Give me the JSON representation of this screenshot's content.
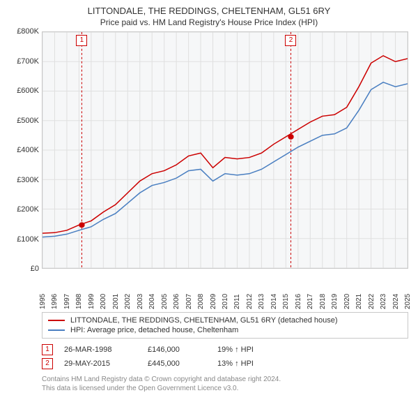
{
  "title": "LITTONDALE, THE REDDINGS, CHELTENHAM, GL51 6RY",
  "subtitle": "Price paid vs. HM Land Registry's House Price Index (HPI)",
  "chart": {
    "type": "line",
    "background_color": "#f6f7f8",
    "grid_color": "#e0e0e0",
    "border_color": "#c8c8c8",
    "ylim": [
      0,
      800
    ],
    "ytick_step": 100,
    "ytick_prefix": "£",
    "ytick_suffix": "K",
    "yticks": [
      "£0",
      "£100K",
      "£200K",
      "£300K",
      "£400K",
      "£500K",
      "£600K",
      "£700K",
      "£800K"
    ],
    "xlim": [
      1995,
      2025
    ],
    "xticks": [
      1995,
      1996,
      1997,
      1998,
      1999,
      2000,
      2001,
      2002,
      2003,
      2004,
      2005,
      2006,
      2007,
      2008,
      2009,
      2010,
      2011,
      2012,
      2013,
      2014,
      2015,
      2016,
      2017,
      2018,
      2019,
      2020,
      2021,
      2022,
      2023,
      2024,
      2025
    ],
    "series_a": {
      "label": "LITTONDALE, THE REDDINGS, CHELTENHAM, GL51 6RY (detached house)",
      "color": "#cc0000",
      "line_width": 1.5,
      "data": [
        [
          1995,
          118
        ],
        [
          1996,
          120
        ],
        [
          1997,
          128
        ],
        [
          1998,
          146
        ],
        [
          1999,
          160
        ],
        [
          2000,
          190
        ],
        [
          2001,
          215
        ],
        [
          2002,
          255
        ],
        [
          2003,
          295
        ],
        [
          2004,
          320
        ],
        [
          2005,
          330
        ],
        [
          2006,
          350
        ],
        [
          2007,
          380
        ],
        [
          2008,
          390
        ],
        [
          2009,
          340
        ],
        [
          2010,
          375
        ],
        [
          2011,
          370
        ],
        [
          2012,
          375
        ],
        [
          2013,
          390
        ],
        [
          2014,
          420
        ],
        [
          2015,
          445
        ],
        [
          2016,
          470
        ],
        [
          2017,
          495
        ],
        [
          2018,
          515
        ],
        [
          2019,
          520
        ],
        [
          2020,
          545
        ],
        [
          2021,
          615
        ],
        [
          2022,
          695
        ],
        [
          2023,
          720
        ],
        [
          2024,
          700
        ],
        [
          2025,
          710
        ]
      ]
    },
    "series_b": {
      "label": "HPI: Average price, detached house, Cheltenham",
      "color": "#4a7fc1",
      "line_width": 1.5,
      "data": [
        [
          1995,
          105
        ],
        [
          1996,
          108
        ],
        [
          1997,
          115
        ],
        [
          1998,
          128
        ],
        [
          1999,
          140
        ],
        [
          2000,
          165
        ],
        [
          2001,
          185
        ],
        [
          2002,
          220
        ],
        [
          2003,
          255
        ],
        [
          2004,
          280
        ],
        [
          2005,
          290
        ],
        [
          2006,
          305
        ],
        [
          2007,
          330
        ],
        [
          2008,
          335
        ],
        [
          2009,
          295
        ],
        [
          2010,
          320
        ],
        [
          2011,
          315
        ],
        [
          2012,
          320
        ],
        [
          2013,
          335
        ],
        [
          2014,
          360
        ],
        [
          2015,
          385
        ],
        [
          2016,
          410
        ],
        [
          2017,
          430
        ],
        [
          2018,
          450
        ],
        [
          2019,
          455
        ],
        [
          2020,
          475
        ],
        [
          2021,
          535
        ],
        [
          2022,
          605
        ],
        [
          2023,
          630
        ],
        [
          2024,
          615
        ],
        [
          2025,
          625
        ]
      ]
    },
    "markers": [
      {
        "n": "1",
        "year": 1998.23,
        "value": 146
      },
      {
        "n": "2",
        "year": 2015.41,
        "value": 445
      }
    ]
  },
  "legend": {
    "a": "LITTONDALE, THE REDDINGS, CHELTENHAM, GL51 6RY (detached house)",
    "b": "HPI: Average price, detached house, Cheltenham"
  },
  "events": [
    {
      "n": "1",
      "date": "26-MAR-1998",
      "price": "£146,000",
      "delta": "19% ↑ HPI"
    },
    {
      "n": "2",
      "date": "29-MAY-2015",
      "price": "£445,000",
      "delta": "13% ↑ HPI"
    }
  ],
  "footer": {
    "line1": "Contains HM Land Registry data © Crown copyright and database right 2024.",
    "line2": "This data is licensed under the Open Government Licence v3.0."
  }
}
